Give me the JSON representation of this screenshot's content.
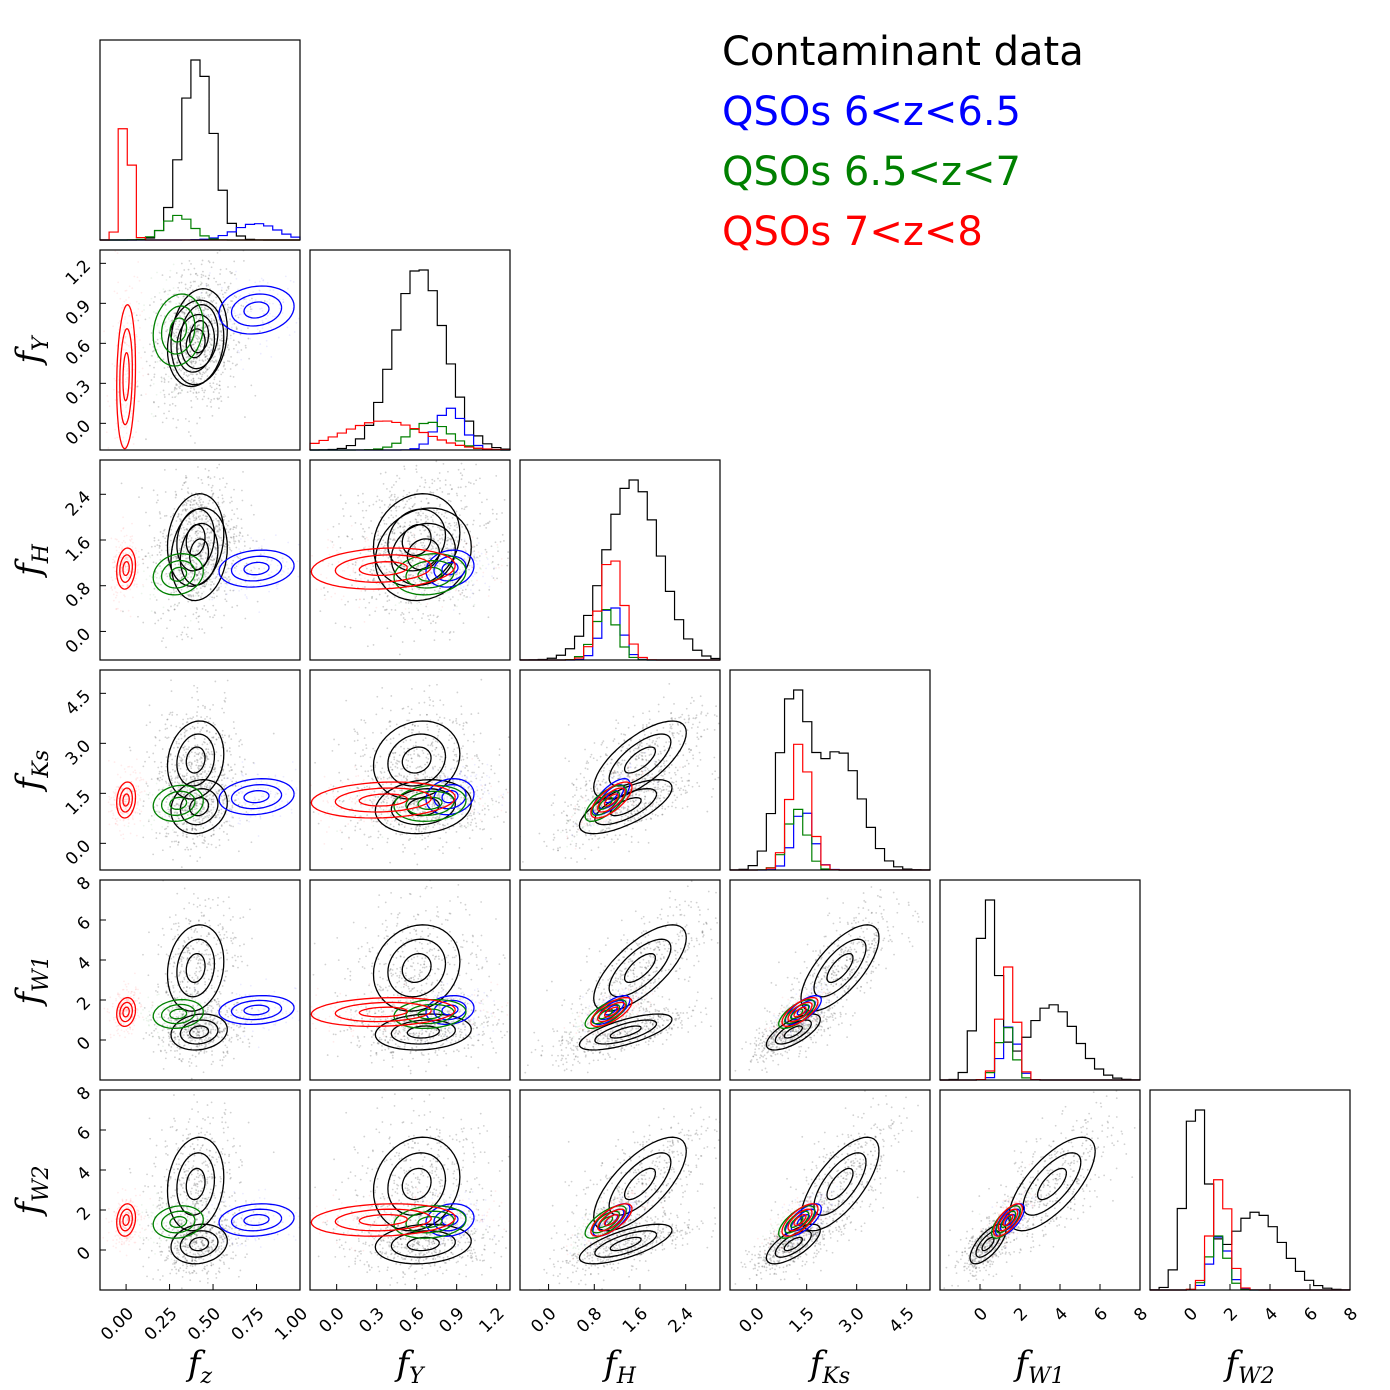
{
  "chart_data": {
    "type": "corner",
    "variables": [
      {
        "key": "fz",
        "label": "f",
        "sub": "z",
        "range": [
          -0.15,
          1.0
        ],
        "ticks": [
          "0.00",
          "0.25",
          "0.50",
          "0.75",
          "1.00"
        ],
        "tick_values": [
          0,
          0.25,
          0.5,
          0.75,
          1.0
        ]
      },
      {
        "key": "fY",
        "label": "f",
        "sub": "Y",
        "range": [
          -0.2,
          1.3
        ],
        "ticks": [
          "0.0",
          "0.3",
          "0.6",
          "0.9",
          "1.2"
        ],
        "tick_values": [
          0,
          0.3,
          0.6,
          0.9,
          1.2
        ]
      },
      {
        "key": "fH",
        "label": "f",
        "sub": "H",
        "range": [
          -0.5,
          3.0
        ],
        "ticks": [
          "0.0",
          "0.8",
          "1.6",
          "2.4"
        ],
        "tick_values": [
          0,
          0.8,
          1.6,
          2.4
        ]
      },
      {
        "key": "fKs",
        "label": "f",
        "sub": "Ks",
        "range": [
          -0.8,
          5.2
        ],
        "ticks": [
          "0.0",
          "1.5",
          "3.0",
          "4.5"
        ],
        "tick_values": [
          0,
          1.5,
          3.0,
          4.5
        ]
      },
      {
        "key": "fW1",
        "label": "f",
        "sub": "W1",
        "range": [
          -2,
          8
        ],
        "ticks": [
          "0",
          "2",
          "4",
          "6",
          "8"
        ],
        "tick_values": [
          0,
          2,
          4,
          6,
          8
        ]
      },
      {
        "key": "fW2",
        "label": "f",
        "sub": "W2",
        "range": [
          -2,
          8
        ],
        "ticks": [
          "0",
          "2",
          "4",
          "6",
          "8"
        ],
        "tick_values": [
          0,
          2,
          4,
          6,
          8
        ]
      }
    ],
    "series": [
      {
        "name": "Contaminant data",
        "color": "#000000",
        "components": [
          {
            "weight": 0.5,
            "mean": [
              0.4,
              0.6,
              1.6,
              2.5,
              3.6,
              3.3
            ],
            "sd": [
              0.09,
              0.18,
              0.45,
              0.65,
              1.2,
              1.3
            ]
          },
          {
            "weight": 0.5,
            "mean": [
              0.42,
              0.65,
              1.35,
              1.1,
              0.4,
              0.3
            ],
            "sd": [
              0.09,
              0.2,
              0.45,
              0.45,
              0.5,
              0.55
            ]
          }
        ]
      },
      {
        "name": "QSOs 6<z<6.5",
        "color": "#0000ff",
        "components": [
          {
            "weight": 1.0,
            "mean": [
              0.75,
              0.85,
              1.1,
              1.4,
              1.5,
              1.5
            ],
            "sd": [
              0.12,
              0.1,
              0.18,
              0.3,
              0.4,
              0.45
            ]
          }
        ]
      },
      {
        "name": "QSOs 6.5<z<7",
        "color": "#008000",
        "components": [
          {
            "weight": 1.0,
            "mean": [
              0.3,
              0.7,
              1.0,
              1.2,
              1.3,
              1.4
            ],
            "sd": [
              0.08,
              0.15,
              0.2,
              0.3,
              0.4,
              0.45
            ]
          }
        ]
      },
      {
        "name": "QSOs 7<z<8",
        "color": "#ff0000",
        "components": [
          {
            "weight": 1.0,
            "mean": [
              0.0,
              0.35,
              1.1,
              1.3,
              1.4,
              1.5
            ],
            "sd": [
              0.03,
              0.3,
              0.2,
              0.3,
              0.4,
              0.45
            ]
          }
        ]
      }
    ],
    "contour_levels": [
      0.39,
      0.86,
      0.99
    ],
    "legend": {
      "position": "top-right",
      "entries": [
        "Contaminant data",
        "QSOs 6<z<6.5",
        "QSOs 6.5<z<7",
        "QSOs 7<z<8"
      ]
    },
    "grid": false
  }
}
